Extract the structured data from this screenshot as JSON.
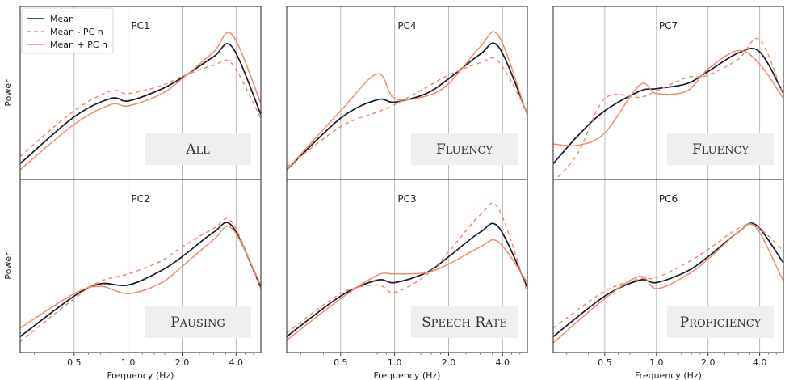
{
  "figure": {
    "ylabel": "Power",
    "xlabel": "Frequency (Hz)",
    "legend": [
      "Mean",
      "Mean - PC n",
      "Mean + PC n"
    ]
  },
  "colors": {
    "mean": "#1a1a2a",
    "pc": "#ee8c70",
    "badge": "#efefef",
    "grid": "#b3b3b3"
  },
  "chart_data": [
    {
      "type": "line",
      "title": "PC1",
      "badge": "All",
      "xscale": "log",
      "x": [
        0.25,
        0.5,
        0.8,
        1.0,
        1.5,
        2.0,
        3.0,
        3.8,
        5.5
      ],
      "xticks": [
        "0.5",
        "1.0",
        "2.0",
        "4.0"
      ],
      "series": [
        {
          "name": "Mean",
          "values": [
            0.05,
            0.43,
            0.58,
            0.56,
            0.65,
            0.75,
            0.92,
            1.0,
            0.45
          ]
        },
        {
          "name": "Mean - PC n",
          "values": [
            0.11,
            0.48,
            0.64,
            0.62,
            0.68,
            0.76,
            0.85,
            0.86,
            0.42
          ]
        },
        {
          "name": "Mean + PC n",
          "values": [
            0.0,
            0.37,
            0.53,
            0.52,
            0.61,
            0.74,
            0.96,
            1.1,
            0.54
          ]
        }
      ]
    },
    {
      "type": "line",
      "title": "PC4",
      "badge": "Fluency",
      "xscale": "log",
      "x": [
        0.25,
        0.5,
        0.8,
        1.0,
        1.5,
        2.0,
        3.0,
        3.8,
        5.5
      ],
      "xticks": [
        "0.5",
        "1.0",
        "2.0",
        "4.0"
      ],
      "series": [
        {
          "name": "Mean",
          "values": [
            0.0,
            0.42,
            0.57,
            0.55,
            0.62,
            0.74,
            0.94,
            1.0,
            0.45
          ]
        },
        {
          "name": "Mean - PC n",
          "values": [
            0.02,
            0.35,
            0.47,
            0.53,
            0.67,
            0.77,
            0.87,
            0.88,
            0.47
          ]
        },
        {
          "name": "Mean + PC n",
          "values": [
            0.0,
            0.48,
            0.78,
            0.58,
            0.6,
            0.7,
            1.0,
            1.09,
            0.44
          ]
        }
      ]
    },
    {
      "type": "line",
      "title": "PC7",
      "badge": "Fluency",
      "xscale": "log",
      "x": [
        0.25,
        0.35,
        0.5,
        0.8,
        1.0,
        1.5,
        2.0,
        3.0,
        4.0,
        5.5
      ],
      "xticks": [
        "0.5",
        "1.0",
        "2.0",
        "4.0"
      ],
      "series": [
        {
          "name": "Mean",
          "values": [
            0.05,
            0.28,
            0.48,
            0.64,
            0.66,
            0.7,
            0.8,
            0.95,
            0.96,
            0.62
          ]
        },
        {
          "name": "Mean - PC n",
          "values": [
            -0.1,
            0.14,
            0.58,
            0.59,
            0.64,
            0.75,
            0.77,
            0.9,
            1.06,
            0.6
          ]
        },
        {
          "name": "Mean + PC n",
          "values": [
            0.21,
            0.2,
            0.3,
            0.69,
            0.62,
            0.64,
            0.82,
            0.97,
            0.86,
            0.58
          ]
        }
      ]
    },
    {
      "type": "line",
      "title": "PC2",
      "badge": "Pausing",
      "xscale": "log",
      "x": [
        0.25,
        0.5,
        0.7,
        1.0,
        1.5,
        2.0,
        3.0,
        3.8,
        5.5
      ],
      "xticks": [
        "0.5",
        "1.0",
        "2.0",
        "4.0"
      ],
      "series": [
        {
          "name": "Mean",
          "values": [
            0.05,
            0.38,
            0.48,
            0.47,
            0.58,
            0.7,
            0.9,
            0.95,
            0.45
          ]
        },
        {
          "name": "Mean - PC n",
          "values": [
            0.01,
            0.36,
            0.5,
            0.56,
            0.66,
            0.78,
            0.93,
            0.98,
            0.44
          ]
        },
        {
          "name": "Mean + PC n",
          "values": [
            0.12,
            0.4,
            0.46,
            0.4,
            0.48,
            0.62,
            0.84,
            0.93,
            0.47
          ]
        }
      ]
    },
    {
      "type": "line",
      "title": "PC3",
      "badge": "Speech rate",
      "xscale": "log",
      "x": [
        0.25,
        0.5,
        0.8,
        1.0,
        1.5,
        2.0,
        3.0,
        3.8,
        5.5
      ],
      "xticks": [
        "0.5",
        "1.0",
        "2.0",
        "4.0"
      ],
      "series": [
        {
          "name": "Mean",
          "values": [
            0.05,
            0.38,
            0.51,
            0.49,
            0.57,
            0.7,
            0.9,
            0.94,
            0.45
          ]
        },
        {
          "name": "Mean - PC n",
          "values": [
            0.08,
            0.4,
            0.47,
            0.41,
            0.55,
            0.74,
            1.04,
            1.09,
            0.41
          ]
        },
        {
          "name": "Mean + PC n",
          "values": [
            0.02,
            0.36,
            0.55,
            0.56,
            0.57,
            0.64,
            0.78,
            0.82,
            0.49
          ]
        }
      ]
    },
    {
      "type": "line",
      "title": "PC6",
      "badge": "Proficiency",
      "xscale": "log",
      "x": [
        0.25,
        0.5,
        0.8,
        1.0,
        1.5,
        2.0,
        3.0,
        3.8,
        5.5
      ],
      "xticks": [
        "0.5",
        "1.0",
        "2.0",
        "4.0"
      ],
      "series": [
        {
          "name": "Mean",
          "values": [
            0.05,
            0.38,
            0.51,
            0.49,
            0.58,
            0.7,
            0.9,
            0.96,
            0.65
          ]
        },
        {
          "name": "Mean - PC n",
          "values": [
            0.12,
            0.42,
            0.52,
            0.53,
            0.65,
            0.76,
            0.93,
            0.95,
            0.75
          ]
        },
        {
          "name": "Mean + PC n",
          "values": [
            0.0,
            0.36,
            0.54,
            0.44,
            0.55,
            0.68,
            0.9,
            0.94,
            0.5
          ]
        }
      ]
    }
  ]
}
